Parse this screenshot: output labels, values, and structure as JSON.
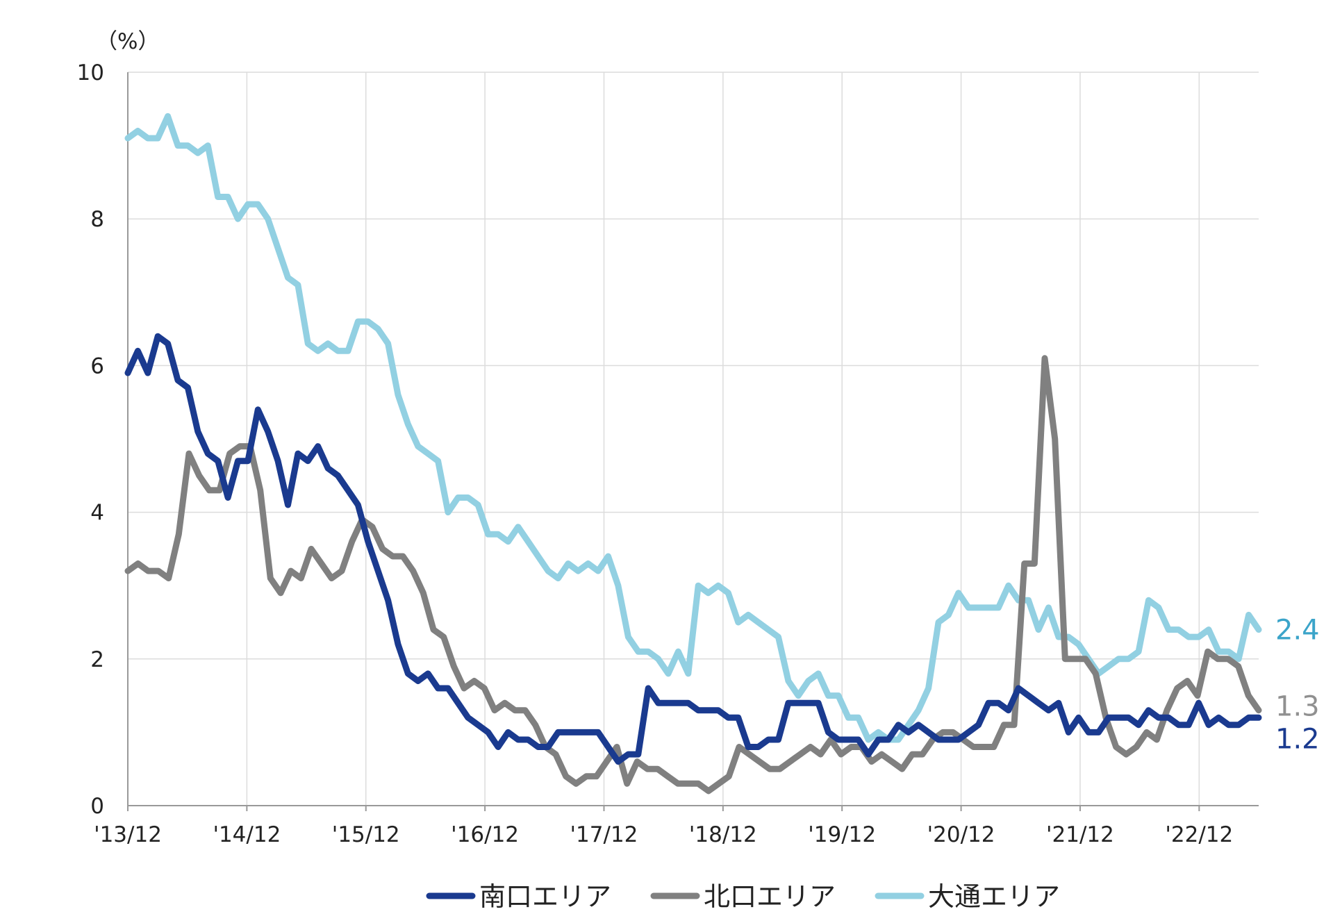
{
  "chart_data": {
    "type": "line",
    "title": "",
    "unit_label": "（%）",
    "ylim": [
      0,
      10
    ],
    "y_ticks": [
      "0",
      "2",
      "4",
      "6",
      "8",
      "10"
    ],
    "x_tick_labels": [
      "'13/12",
      "'14/12",
      "'15/12",
      "'16/12",
      "'17/12",
      "'18/12",
      "'19/12",
      "'20/12",
      "'21/12",
      "'22/12"
    ],
    "x_start": "2013-12",
    "x_end": "2023-06",
    "grid": "y-major-and-x-at-ticks",
    "legend_position": "bottom",
    "series": [
      {
        "name": "南口エリア",
        "color": "#1a3a8f",
        "end_label": "1.2",
        "values": [
          5.9,
          6.2,
          5.9,
          6.4,
          6.3,
          5.8,
          5.7,
          5.1,
          4.8,
          4.7,
          4.2,
          4.7,
          4.7,
          5.4,
          5.1,
          4.7,
          4.1,
          4.8,
          4.7,
          4.9,
          4.6,
          4.5,
          4.3,
          4.1,
          3.6,
          3.2,
          2.8,
          2.2,
          1.8,
          1.7,
          1.8,
          1.6,
          1.6,
          1.4,
          1.2,
          1.1,
          1.0,
          0.8,
          1.0,
          0.9,
          0.9,
          0.8,
          0.8,
          1.0,
          1.0,
          1.0,
          1.0,
          1.0,
          0.8,
          0.6,
          0.7,
          0.7,
          1.6,
          1.4,
          1.4,
          1.4,
          1.4,
          1.3,
          1.3,
          1.3,
          1.2,
          1.2,
          0.8,
          0.8,
          0.9,
          0.9,
          1.4,
          1.4,
          1.4,
          1.4,
          1.0,
          0.9,
          0.9,
          0.9,
          0.7,
          0.9,
          0.9,
          1.1,
          1.0,
          1.1,
          1.0,
          0.9,
          0.9,
          0.9,
          1.0,
          1.1,
          1.4,
          1.4,
          1.3,
          1.6,
          1.5,
          1.4,
          1.3,
          1.4,
          1.0,
          1.2,
          1.0,
          1.0,
          1.2,
          1.2,
          1.2,
          1.1,
          1.3,
          1.2,
          1.2,
          1.1,
          1.1,
          1.4,
          1.1,
          1.2,
          1.1,
          1.1,
          1.2,
          1.2
        ]
      },
      {
        "name": "北口エリア",
        "color": "#808080",
        "end_label": "1.3",
        "values": [
          3.2,
          3.3,
          3.2,
          3.2,
          3.1,
          3.7,
          4.8,
          4.5,
          4.3,
          4.3,
          4.8,
          4.9,
          4.9,
          4.3,
          3.1,
          2.9,
          3.2,
          3.1,
          3.5,
          3.3,
          3.1,
          3.2,
          3.6,
          3.9,
          3.8,
          3.5,
          3.4,
          3.4,
          3.2,
          2.9,
          2.4,
          2.3,
          1.9,
          1.6,
          1.7,
          1.6,
          1.3,
          1.4,
          1.3,
          1.3,
          1.1,
          0.8,
          0.7,
          0.4,
          0.3,
          0.4,
          0.4,
          0.6,
          0.8,
          0.3,
          0.6,
          0.5,
          0.5,
          0.4,
          0.3,
          0.3,
          0.3,
          0.2,
          0.3,
          0.4,
          0.8,
          0.7,
          0.6,
          0.5,
          0.5,
          0.6,
          0.7,
          0.8,
          0.7,
          0.9,
          0.7,
          0.8,
          0.8,
          0.6,
          0.7,
          0.6,
          0.5,
          0.7,
          0.7,
          0.9,
          1.0,
          1.0,
          0.9,
          0.8,
          0.8,
          0.8,
          1.1,
          1.1,
          3.3,
          3.3,
          6.1,
          5.0,
          2.0,
          2.0,
          2.0,
          1.8,
          1.2,
          0.8,
          0.7,
          0.8,
          1.0,
          0.9,
          1.3,
          1.6,
          1.7,
          1.5,
          2.1,
          2.0,
          2.0,
          1.9,
          1.5,
          1.3
        ]
      },
      {
        "name": "大通エリア",
        "color": "#92d0e2",
        "end_label": "2.4",
        "values": [
          9.1,
          9.2,
          9.1,
          9.1,
          9.4,
          9.0,
          9.0,
          8.9,
          9.0,
          8.3,
          8.3,
          8.0,
          8.2,
          8.2,
          8.0,
          7.6,
          7.2,
          7.1,
          6.3,
          6.2,
          6.3,
          6.2,
          6.2,
          6.6,
          6.6,
          6.5,
          6.3,
          5.6,
          5.2,
          4.9,
          4.8,
          4.7,
          4.0,
          4.2,
          4.2,
          4.1,
          3.7,
          3.7,
          3.6,
          3.8,
          3.6,
          3.4,
          3.2,
          3.1,
          3.3,
          3.2,
          3.3,
          3.2,
          3.4,
          3.0,
          2.3,
          2.1,
          2.1,
          2.0,
          1.8,
          2.1,
          1.8,
          3.0,
          2.9,
          3.0,
          2.9,
          2.5,
          2.6,
          2.5,
          2.4,
          2.3,
          1.7,
          1.5,
          1.7,
          1.8,
          1.5,
          1.5,
          1.2,
          1.2,
          0.9,
          1.0,
          0.9,
          0.9,
          1.1,
          1.3,
          1.6,
          2.5,
          2.6,
          2.9,
          2.7,
          2.7,
          2.7,
          2.7,
          3.0,
          2.8,
          2.8,
          2.4,
          2.7,
          2.3,
          2.3,
          2.2,
          2.0,
          1.8,
          1.9,
          2.0,
          2.0,
          2.1,
          2.8,
          2.7,
          2.4,
          2.4,
          2.3,
          2.3,
          2.4,
          2.1,
          2.1,
          2.0,
          2.6,
          2.4
        ]
      }
    ]
  }
}
